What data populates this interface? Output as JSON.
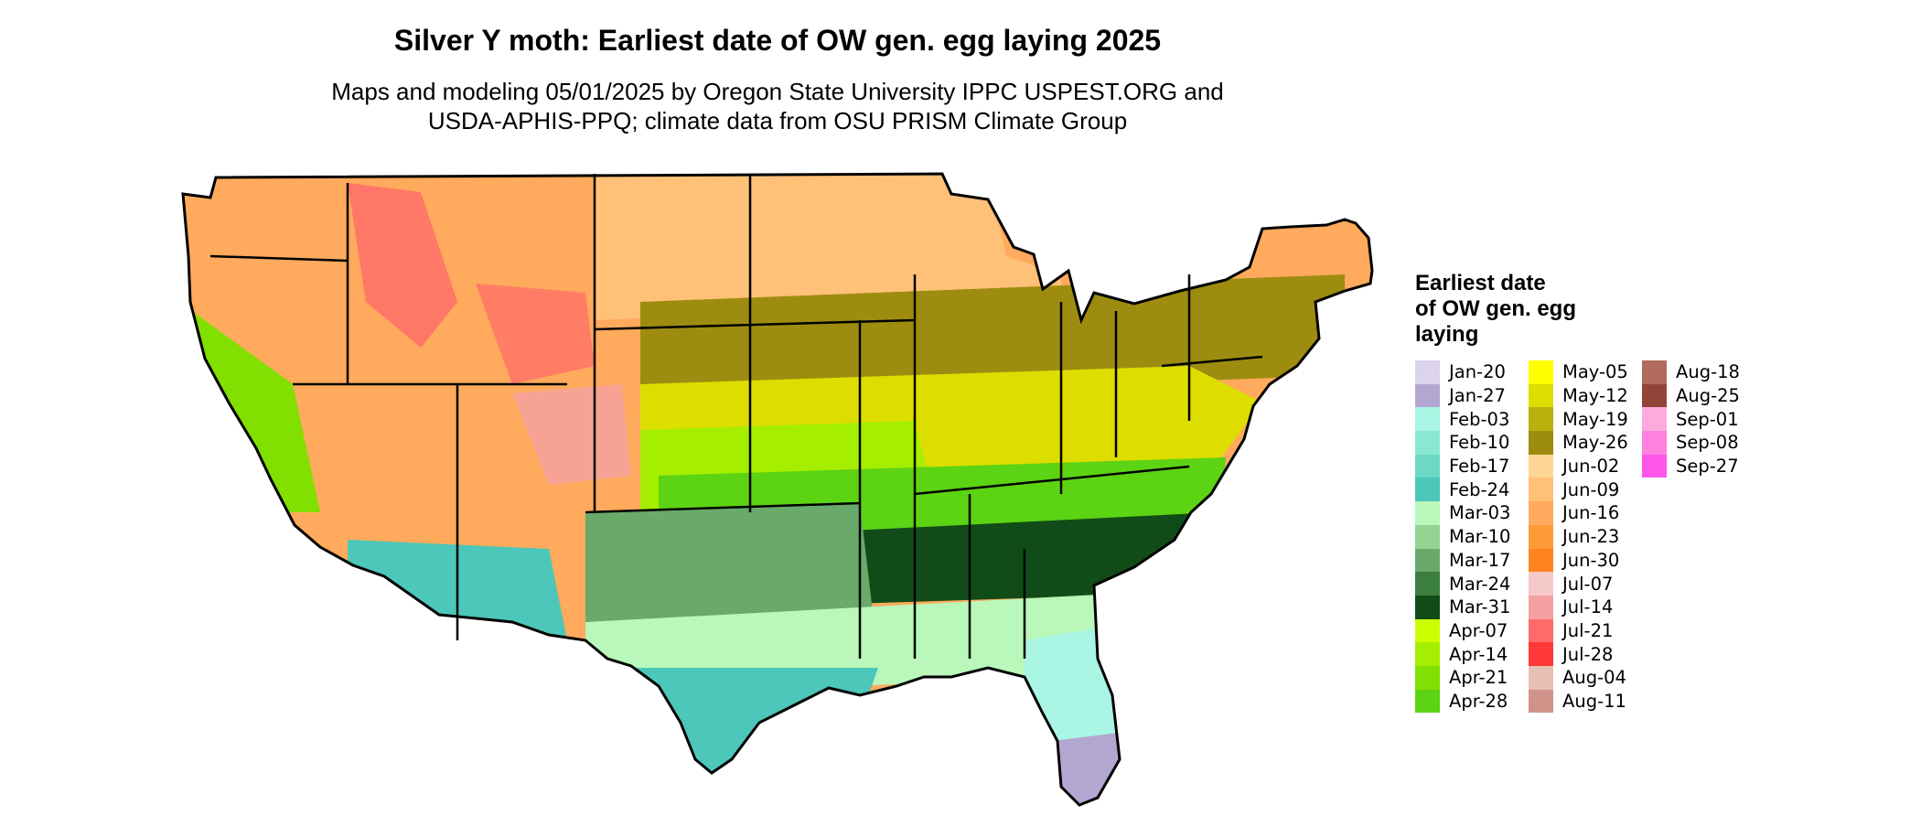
{
  "title": "Silver Y moth: Earliest date of OW gen. egg laying 2025",
  "subtitle_line1": "Maps and modeling 05/01/2025 by Oregon State University IPPC USPEST.ORG and",
  "subtitle_line2": "USDA-APHIS-PPQ; climate data from OSU PRISM Climate Group",
  "legend": {
    "title_lines": [
      "Earliest date",
      "of OW gen. egg",
      "laying"
    ],
    "items": [
      {
        "label": "Jan-20",
        "color": "#dcd4ea"
      },
      {
        "label": "Jan-27",
        "color": "#b3a6d0"
      },
      {
        "label": "Feb-03",
        "color": "#aaf5e3"
      },
      {
        "label": "Feb-10",
        "color": "#8ae8d2"
      },
      {
        "label": "Feb-17",
        "color": "#6bd9c6"
      },
      {
        "label": "Feb-24",
        "color": "#4cc7b9"
      },
      {
        "label": "Mar-03",
        "color": "#b9f7bb"
      },
      {
        "label": "Mar-10",
        "color": "#93d493"
      },
      {
        "label": "Mar-17",
        "color": "#69aa6b"
      },
      {
        "label": "Mar-24",
        "color": "#3c7e40"
      },
      {
        "label": "Mar-31",
        "color": "#114c18"
      },
      {
        "label": "Apr-07",
        "color": "#ccff00"
      },
      {
        "label": "Apr-14",
        "color": "#a6ee00"
      },
      {
        "label": "Apr-21",
        "color": "#82e000"
      },
      {
        "label": "Apr-28",
        "color": "#5cd313"
      },
      {
        "label": "May-05",
        "color": "#ffff00"
      },
      {
        "label": "May-12",
        "color": "#dedd00"
      },
      {
        "label": "May-19",
        "color": "#bab10e"
      },
      {
        "label": "May-26",
        "color": "#9e8c10"
      },
      {
        "label": "Jun-02",
        "color": "#ffd696"
      },
      {
        "label": "Jun-09",
        "color": "#ffc078"
      },
      {
        "label": "Jun-16",
        "color": "#ffaa5c"
      },
      {
        "label": "Jun-23",
        "color": "#ff9a3a"
      },
      {
        "label": "Jun-30",
        "color": "#ff8420"
      },
      {
        "label": "Jul-07",
        "color": "#f5c9c9"
      },
      {
        "label": "Jul-14",
        "color": "#f5a1a1"
      },
      {
        "label": "Jul-21",
        "color": "#ff6a6a"
      },
      {
        "label": "Jul-28",
        "color": "#ff3838"
      },
      {
        "label": "Aug-04",
        "color": "#e8bfb5"
      },
      {
        "label": "Aug-11",
        "color": "#cf9389"
      },
      {
        "label": "Aug-18",
        "color": "#b06a5e"
      },
      {
        "label": "Aug-25",
        "color": "#93443a"
      },
      {
        "label": "Sep-01",
        "color": "#ffaadd"
      },
      {
        "label": "Sep-08",
        "color": "#ff80dd"
      },
      {
        "label": "Sep-27",
        "color": "#ff55e8"
      }
    ]
  },
  "map_zones": [
    {
      "zone": "northern-plains",
      "date": "Jun-09",
      "color": "#ffc078"
    },
    {
      "zone": "northwest",
      "date": "Jun-23",
      "color": "#ff9a3a"
    },
    {
      "zone": "rockies-high",
      "date": "Jul-21",
      "color": "#ff6a6a"
    },
    {
      "zone": "great-lakes-northeast",
      "date": "Jun-16",
      "color": "#ffaa5c"
    },
    {
      "zone": "corn-belt",
      "date": "May-26",
      "color": "#9e8c10"
    },
    {
      "zone": "central-band",
      "date": "May-12",
      "color": "#dedd00"
    },
    {
      "zone": "kansas-missouri",
      "date": "Apr-14",
      "color": "#a6ee00"
    },
    {
      "zone": "mid-south",
      "date": "Apr-28",
      "color": "#5cd313"
    },
    {
      "zone": "deep-south",
      "date": "Mar-31",
      "color": "#114c18"
    },
    {
      "zone": "texas-central",
      "date": "Mar-17",
      "color": "#69aa6b"
    },
    {
      "zone": "gulf-coast",
      "date": "Mar-03",
      "color": "#b9f7bb"
    },
    {
      "zone": "south-texas-arizona",
      "date": "Feb-24",
      "color": "#4cc7b9"
    },
    {
      "zone": "florida",
      "date": "Feb-03",
      "color": "#aaf5e3"
    },
    {
      "zone": "south-florida",
      "date": "Jan-27",
      "color": "#b3a6d0"
    },
    {
      "zone": "california-valley",
      "date": "Apr-21",
      "color": "#82e000"
    }
  ]
}
